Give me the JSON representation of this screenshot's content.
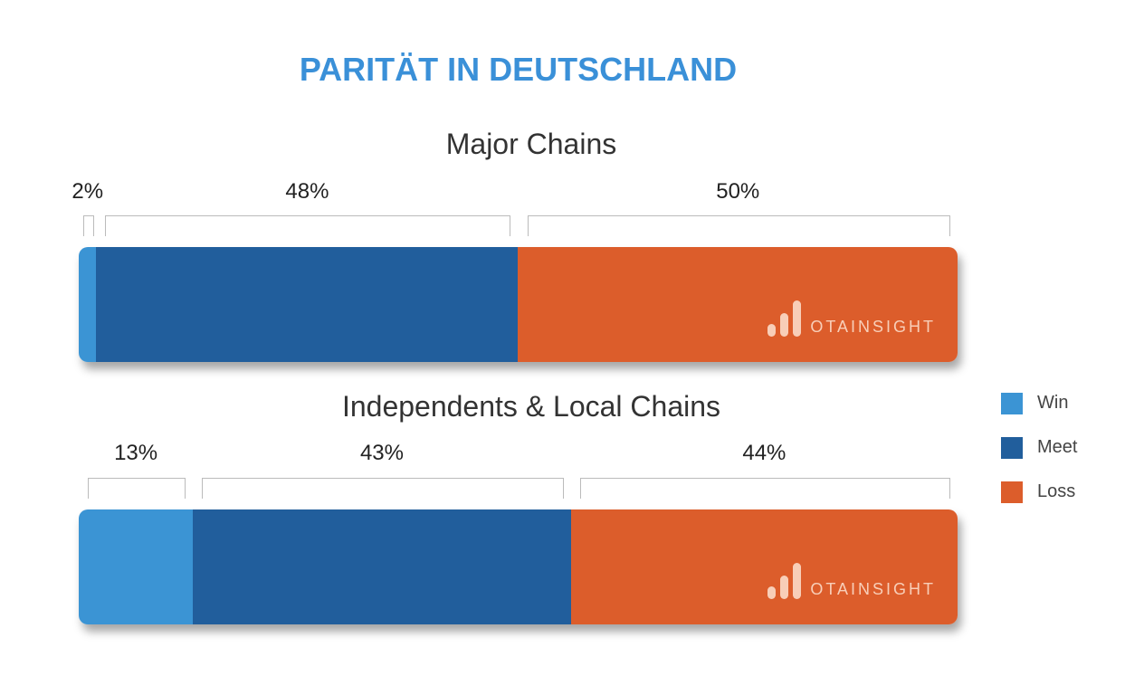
{
  "chart_data": {
    "type": "bar",
    "stacked": true,
    "orientation": "horizontal",
    "title": "PARITÄT IN DEUTSCHLAND",
    "legend": [
      "Win",
      "Meet",
      "Loss"
    ],
    "legend_position": "right",
    "colors": {
      "Win": "#3b94d4",
      "Meet": "#215e9c",
      "Loss": "#dc5d2b"
    },
    "panels": [
      {
        "title": "Major Chains",
        "values": [
          2,
          48,
          50
        ],
        "labels": [
          "2%",
          "48%",
          "50%"
        ]
      },
      {
        "title": "Independents & Local Chains",
        "values": [
          13,
          43,
          44
        ],
        "labels": [
          "13%",
          "43%",
          "44%"
        ]
      }
    ],
    "watermark": "OTAINSIGHT"
  }
}
